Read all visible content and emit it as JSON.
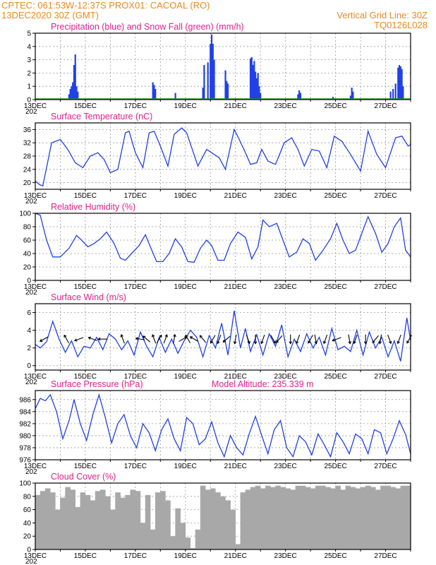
{
  "header": {
    "line1_left": "CPTEC:   061:53W-12:37S   PROX01: CACOAL (RO)",
    "line2_left": "13DEC2020 30Z (GMT)",
    "line2_right": "Vertical Grid Line: 30Z",
    "line3_right": "TQ0126L028"
  },
  "x_axis": {
    "days": 15,
    "labels": [
      "13DEC",
      "15DEC",
      "17DEC",
      "19DEC",
      "21DEC",
      "23DEC",
      "25DEC",
      "27DEC"
    ],
    "label_days": [
      0,
      2,
      4,
      6,
      8,
      10,
      12,
      14
    ],
    "stub_label": "202"
  },
  "colors": {
    "series": "#2040e8",
    "snow": "#20a020",
    "bar_gray": "#a8a8a8",
    "title": "#e0208c",
    "header": "#e88a20"
  },
  "chart_data": [
    {
      "type": "bar",
      "title": "Precipitation (blue) and Snow Fall (green) (mm/h)",
      "ylim": [
        0,
        5
      ],
      "yticks": [
        "0",
        "1",
        "2",
        "3",
        "4",
        "5"
      ],
      "ytick_values": [
        0,
        1,
        2,
        3,
        4,
        5
      ],
      "x": [
        1.35,
        1.4,
        1.45,
        1.5,
        1.55,
        1.6,
        1.65,
        1.7,
        4.7,
        4.75,
        4.8,
        5.6,
        6.7,
        6.75,
        6.9,
        7.0,
        7.05,
        7.1,
        7.15,
        7.6,
        7.65,
        7.7,
        8.6,
        8.65,
        8.7,
        8.75,
        8.8,
        8.85,
        8.9,
        8.95,
        9.0,
        10.5,
        10.55,
        10.6,
        11.9,
        12.6,
        12.65,
        12.7,
        14.2,
        14.3,
        14.4,
        14.5,
        14.55,
        14.6,
        14.65,
        14.7
      ],
      "values": [
        0.4,
        0.8,
        1.0,
        1.3,
        2.6,
        3.4,
        1.0,
        0.6,
        1.3,
        1.1,
        0.8,
        0.5,
        0.9,
        2.6,
        2.8,
        4.2,
        4.9,
        4.2,
        3.0,
        2.2,
        1.4,
        1.2,
        3.1,
        3.2,
        2.6,
        2.9,
        2.1,
        1.6,
        2.0,
        1.0,
        0.5,
        0.4,
        0.7,
        0.5,
        0.2,
        0.3,
        0.9,
        0.6,
        0.6,
        0.8,
        1.2,
        2.4,
        2.6,
        2.5,
        2.3,
        1.0
      ],
      "snow": "0 throughout"
    },
    {
      "type": "line",
      "title": "Surface Temperature (nC)",
      "ylim": [
        18,
        38
      ],
      "yticks": [
        "20",
        "24",
        "28",
        "32",
        "36"
      ],
      "ytick_values": [
        20,
        24,
        28,
        32,
        36
      ],
      "x": [
        0,
        0.15,
        0.3,
        0.45,
        0.65,
        1.0,
        1.3,
        1.6,
        1.9,
        2.2,
        2.5,
        2.75,
        3.0,
        3.3,
        3.6,
        3.75,
        4.0,
        4.3,
        4.55,
        4.75,
        5.0,
        5.3,
        5.55,
        5.85,
        6.05,
        6.5,
        6.85,
        7.15,
        7.35,
        7.6,
        7.95,
        8.15,
        8.4,
        8.6,
        8.85,
        9.05,
        9.3,
        9.6,
        9.95,
        10.25,
        10.5,
        10.75,
        11.05,
        11.35,
        11.65,
        11.95,
        12.25,
        12.6,
        13.0,
        13.3,
        13.65,
        14.0,
        14.4,
        14.65,
        14.9,
        15.0
      ],
      "values": [
        20.5,
        19.5,
        19.0,
        24.5,
        32.0,
        33.0,
        30.0,
        26.0,
        24.5,
        28.0,
        29.0,
        27.0,
        23.0,
        24.0,
        35.0,
        35.5,
        29.0,
        24.5,
        35.0,
        35.5,
        31.0,
        25.0,
        34.5,
        36.5,
        35.0,
        25.0,
        30.0,
        28.5,
        27.5,
        24.0,
        36.0,
        33.0,
        29.0,
        25.5,
        26.0,
        30.0,
        26.5,
        25.5,
        32.0,
        33.5,
        30.0,
        25.0,
        30.0,
        29.5,
        24.5,
        34.0,
        32.5,
        28.5,
        23.5,
        35.5,
        28.5,
        24.5,
        33.5,
        34.0,
        31.0,
        31.5
      ]
    },
    {
      "type": "line",
      "title": "Relative Humidity (%)",
      "ylim": [
        0,
        100
      ],
      "yticks": [
        "0",
        "20",
        "40",
        "60",
        "80",
        "100"
      ],
      "ytick_values": [
        0,
        20,
        40,
        60,
        80,
        100
      ],
      "x": [
        0,
        0.2,
        0.45,
        0.7,
        1.0,
        1.35,
        1.65,
        1.85,
        2.1,
        2.35,
        2.6,
        2.85,
        3.15,
        3.4,
        3.6,
        3.85,
        4.15,
        4.4,
        4.6,
        4.85,
        5.1,
        5.35,
        5.6,
        5.85,
        6.1,
        6.35,
        6.6,
        6.85,
        7.05,
        7.3,
        7.55,
        7.8,
        8.1,
        8.4,
        8.65,
        8.9,
        9.1,
        9.35,
        9.65,
        9.9,
        10.15,
        10.45,
        10.7,
        10.95,
        11.2,
        11.5,
        11.8,
        12.05,
        12.3,
        12.55,
        12.8,
        13.05,
        13.3,
        13.6,
        13.85,
        14.1,
        14.35,
        14.6,
        14.8,
        15.0
      ],
      "values": [
        100,
        97,
        60,
        35,
        35,
        48,
        67,
        60,
        50,
        55,
        62,
        72,
        55,
        33,
        30,
        40,
        52,
        68,
        50,
        28,
        28,
        40,
        62,
        50,
        28,
        27,
        48,
        60,
        52,
        30,
        30,
        55,
        72,
        64,
        32,
        50,
        90,
        80,
        85,
        60,
        35,
        42,
        62,
        55,
        30,
        45,
        62,
        85,
        60,
        40,
        45,
        70,
        95,
        70,
        42,
        55,
        80,
        93,
        45,
        35
      ]
    },
    {
      "type": "line",
      "title": "Surface Wind (m/s)",
      "ylim": [
        -0.5,
        7
      ],
      "yticks": [
        "0",
        "2",
        "4",
        "6"
      ],
      "ytick_values": [
        0,
        2,
        4,
        6
      ],
      "x": [
        0,
        0.2,
        0.45,
        0.7,
        0.95,
        1.2,
        1.45,
        1.7,
        1.95,
        2.2,
        2.45,
        2.7,
        2.95,
        3.2,
        3.45,
        3.7,
        3.95,
        4.2,
        4.45,
        4.7,
        4.95,
        5.2,
        5.45,
        5.7,
        5.95,
        6.2,
        6.45,
        6.7,
        6.95,
        7.2,
        7.45,
        7.7,
        7.95,
        8.2,
        8.4,
        8.6,
        8.85,
        9.1,
        9.35,
        9.6,
        9.85,
        10.1,
        10.35,
        10.6,
        10.85,
        11.1,
        11.35,
        11.6,
        11.85,
        12.1,
        12.35,
        12.6,
        12.85,
        13.1,
        13.35,
        13.6,
        13.85,
        14.1,
        14.35,
        14.6,
        14.85,
        15.0
      ],
      "values": [
        2.4,
        2.0,
        2.7,
        5.0,
        3.0,
        1.5,
        2.8,
        1.0,
        2.2,
        2.0,
        3.2,
        1.8,
        3.6,
        3.0,
        1.8,
        2.8,
        1.2,
        3.8,
        2.2,
        1.0,
        3.2,
        1.5,
        3.0,
        1.4,
        2.8,
        4.0,
        3.2,
        1.0,
        3.4,
        2.0,
        4.8,
        1.2,
        6.2,
        2.0,
        4.2,
        1.6,
        3.5,
        1.2,
        3.6,
        2.2,
        4.6,
        1.0,
        3.0,
        1.6,
        3.6,
        2.0,
        3.2,
        1.2,
        4.2,
        1.8,
        2.2,
        1.6,
        4.0,
        1.2,
        3.8,
        2.0,
        3.2,
        1.0,
        2.8,
        0.5,
        5.4,
        2.8
      ],
      "arrow_x": [
        0.35,
        1.25,
        1.75,
        2.3,
        2.7,
        3.5,
        4.2,
        4.45,
        4.75,
        4.95,
        5.2,
        5.55,
        5.9,
        6.1,
        6.35,
        6.7,
        7.1,
        7.35,
        7.65,
        8.0,
        8.5,
        8.8,
        9.1,
        9.5,
        9.75,
        10.2,
        10.5,
        11.0,
        11.2,
        11.6,
        12.05,
        12.55,
        12.8,
        13.2,
        13.6,
        13.8,
        14.15,
        14.55,
        14.95
      ],
      "arrow_angle_deg": [
        210,
        120,
        200,
        160,
        180,
        110,
        170,
        140,
        110,
        60,
        70,
        80,
        30,
        120,
        150,
        130,
        240,
        250,
        220,
        260,
        290,
        270,
        250,
        300,
        230,
        270,
        250,
        240,
        280,
        250,
        200,
        280,
        250,
        270,
        230,
        260,
        290,
        250,
        240
      ]
    },
    {
      "type": "line",
      "title": "Surface Pressure (hPa)",
      "subtitle": "Model Altitude: 235.339 m",
      "ylim": [
        976,
        987.5
      ],
      "yticks": [
        "976",
        "978",
        "980",
        "982",
        "984",
        "986"
      ],
      "ytick_values": [
        976,
        978,
        980,
        982,
        984,
        986
      ],
      "x": [
        0,
        0.2,
        0.4,
        0.6,
        0.85,
        1.1,
        1.35,
        1.55,
        1.8,
        2.05,
        2.3,
        2.55,
        2.8,
        3.05,
        3.3,
        3.55,
        3.8,
        4.05,
        4.3,
        4.55,
        4.8,
        5.05,
        5.3,
        5.55,
        5.8,
        6.05,
        6.3,
        6.55,
        6.8,
        7.05,
        7.3,
        7.55,
        7.8,
        8.05,
        8.3,
        8.55,
        8.8,
        9.05,
        9.3,
        9.55,
        9.8,
        10.05,
        10.3,
        10.55,
        10.8,
        11.05,
        11.3,
        11.55,
        11.8,
        12.05,
        12.3,
        12.55,
        12.8,
        13.05,
        13.3,
        13.55,
        13.8,
        14.05,
        14.3,
        14.55,
        14.8,
        15.0
      ],
      "values": [
        984.5,
        986.2,
        985.8,
        986.8,
        984.0,
        979.5,
        982.5,
        986.0,
        982.0,
        979.2,
        983.5,
        986.8,
        983.0,
        978.8,
        982.0,
        983.5,
        980.0,
        978.0,
        982.0,
        980.5,
        977.5,
        981.0,
        982.8,
        979.5,
        977.5,
        983.0,
        982.0,
        978.5,
        979.5,
        982.3,
        978.8,
        976.5,
        980.0,
        978.0,
        976.8,
        980.3,
        983.2,
        980.0,
        977.0,
        981.0,
        982.5,
        978.0,
        976.5,
        980.0,
        979.0,
        976.8,
        980.3,
        978.5,
        976.5,
        980.5,
        979.0,
        977.0,
        980.3,
        979.5,
        977.0,
        981.0,
        980.5,
        977.0,
        979.5,
        982.5,
        980.2,
        977.0
      ]
    },
    {
      "type": "bar",
      "title": "Cloud Cover (%)",
      "ylim": [
        0,
        100
      ],
      "yticks": [
        "0",
        "20",
        "40",
        "60",
        "80",
        "100"
      ],
      "ytick_values": [
        0,
        20,
        40,
        60,
        80,
        100
      ],
      "x": [
        0.1,
        0.3,
        0.5,
        0.7,
        0.9,
        1.1,
        1.3,
        1.5,
        1.7,
        1.9,
        2.1,
        2.3,
        2.5,
        2.7,
        2.9,
        3.1,
        3.3,
        3.5,
        3.7,
        3.9,
        4.1,
        4.3,
        4.5,
        4.7,
        4.9,
        5.1,
        5.3,
        5.5,
        5.7,
        5.9,
        6.1,
        6.3,
        6.5,
        6.7,
        6.9,
        7.1,
        7.3,
        7.5,
        7.7,
        7.9,
        8.1,
        8.3,
        8.5,
        8.7,
        8.9,
        9.1,
        9.3,
        9.5,
        9.7,
        9.9,
        10.1,
        10.3,
        10.5,
        10.7,
        10.9,
        11.1,
        11.3,
        11.5,
        11.7,
        11.9,
        12.1,
        12.3,
        12.5,
        12.7,
        12.9,
        13.1,
        13.3,
        13.5,
        13.7,
        13.9,
        14.1,
        14.3,
        14.5,
        14.7,
        14.9
      ],
      "values": [
        82,
        88,
        92,
        86,
        60,
        78,
        94,
        90,
        64,
        86,
        82,
        74,
        88,
        90,
        80,
        60,
        86,
        78,
        82,
        90,
        88,
        40,
        82,
        30,
        86,
        88,
        74,
        20,
        62,
        40,
        18,
        2,
        30,
        96,
        90,
        92,
        86,
        80,
        74,
        60,
        8,
        86,
        90,
        94,
        96,
        92,
        96,
        94,
        96,
        94,
        92,
        90,
        96,
        96,
        94,
        92,
        96,
        96,
        94,
        92,
        96,
        90,
        96,
        94,
        92,
        94,
        96,
        94,
        90,
        96,
        96,
        94,
        92,
        96,
        96
      ]
    }
  ]
}
